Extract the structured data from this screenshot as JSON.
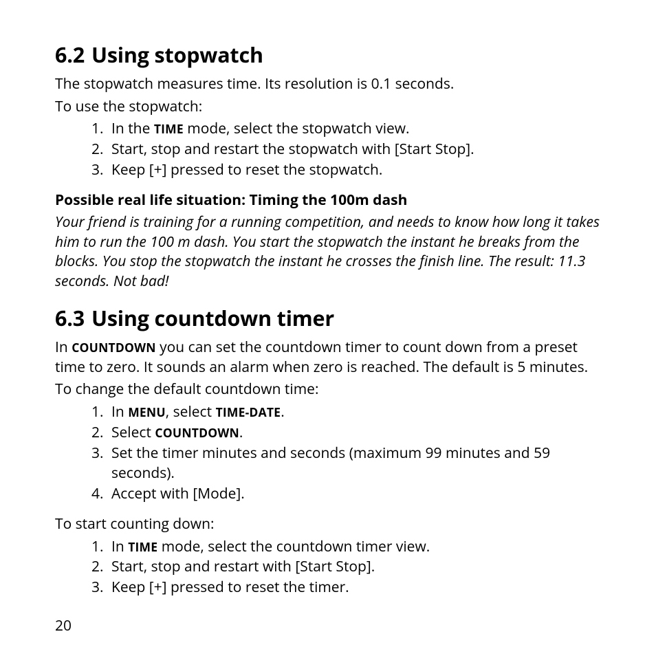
{
  "colors": {
    "bg": "#ffffff",
    "text": "#000000"
  },
  "typography": {
    "base_family": "Myriad Pro / Segoe UI / Open Sans / Arial",
    "body_pt": 21,
    "h2_pt": 30.5,
    "smallcaps_pt": 17.5
  },
  "page_number": "20",
  "section1": {
    "number": "6.2",
    "title": "Using stopwatch",
    "intro": "The stopwatch measures time. Its resolution is 0.1 seconds.",
    "lead": "To use the stopwatch:",
    "steps": {
      "s1_a": "In the ",
      "s1_sc": "TIME",
      "s1_b": " mode, select the stopwatch view.",
      "s2": "Start, stop and restart the stopwatch with [Start Stop].",
      "s3": "Keep [+] pressed to reset the stopwatch."
    },
    "example_heading": "Possible real life situation: Timing the 100m dash",
    "example_body": "Your friend is training for a running competition, and needs to know how long it takes him to run the 100 m dash. You start the stopwatch the instant he breaks from the blocks. You stop the stopwatch the instant he crosses the finish line. The result: 11.3 seconds. Not bad!"
  },
  "section2": {
    "number": "6.3",
    "title": "Using countdown timer",
    "intro_a": "In ",
    "intro_sc": "COUNTDOWN",
    "intro_b": " you can set the countdown timer to count down from a preset time to zero. It sounds an alarm when zero is reached. The default is 5 minutes.",
    "lead1": "To change the default countdown time:",
    "steps1": {
      "s1_a": "In ",
      "s1_sc1": "MENU",
      "s1_b": ", select ",
      "s1_sc2": "TIME-DATE",
      "s1_c": ".",
      "s2_a": "Select ",
      "s2_sc": "COUNTDOWN",
      "s2_b": ".",
      "s3": "Set the timer minutes and seconds (maximum 99 minutes and 59 seconds).",
      "s4": "Accept with [Mode]."
    },
    "lead2": "To start counting down:",
    "steps2": {
      "s1_a": "In ",
      "s1_sc": "TIME",
      "s1_b": " mode, select the countdown timer view.",
      "s2": "Start, stop and restart with [Start Stop].",
      "s3": "Keep [+] pressed to reset the timer."
    }
  }
}
